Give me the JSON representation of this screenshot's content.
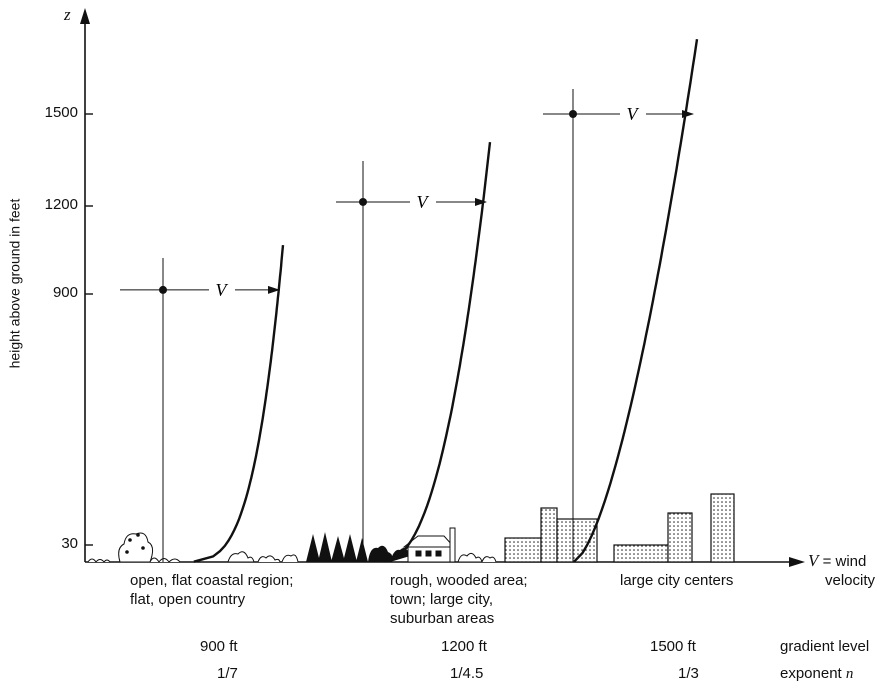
{
  "axis": {
    "y_symbol": "z",
    "y_label": "height above ground in feet",
    "y_ticks": [
      "30",
      "900",
      "1200",
      "1500"
    ],
    "x_symbol": "V",
    "x_label_suffix": "= wind",
    "x_label_line2": "velocity"
  },
  "profiles": [
    {
      "gradient_height": 900,
      "velocity_mark": "V",
      "terrain": [
        "open, flat coastal region;",
        "flat, open country"
      ],
      "gradient_level": "900 ft",
      "exponent": "1/7"
    },
    {
      "gradient_height": 1200,
      "velocity_mark": "V",
      "terrain": [
        "rough, wooded area;",
        "town; large city,",
        "suburban areas"
      ],
      "gradient_level": "1200 ft",
      "exponent": "1/4.5"
    },
    {
      "gradient_height": 1500,
      "velocity_mark": "V",
      "terrain": [
        "large city centers"
      ],
      "gradient_level": "1500 ft",
      "exponent": "1/3"
    }
  ],
  "row_labels": {
    "gradient_level": "gradient level",
    "exponent_prefix": "exponent",
    "exponent_symbol": "n"
  }
}
